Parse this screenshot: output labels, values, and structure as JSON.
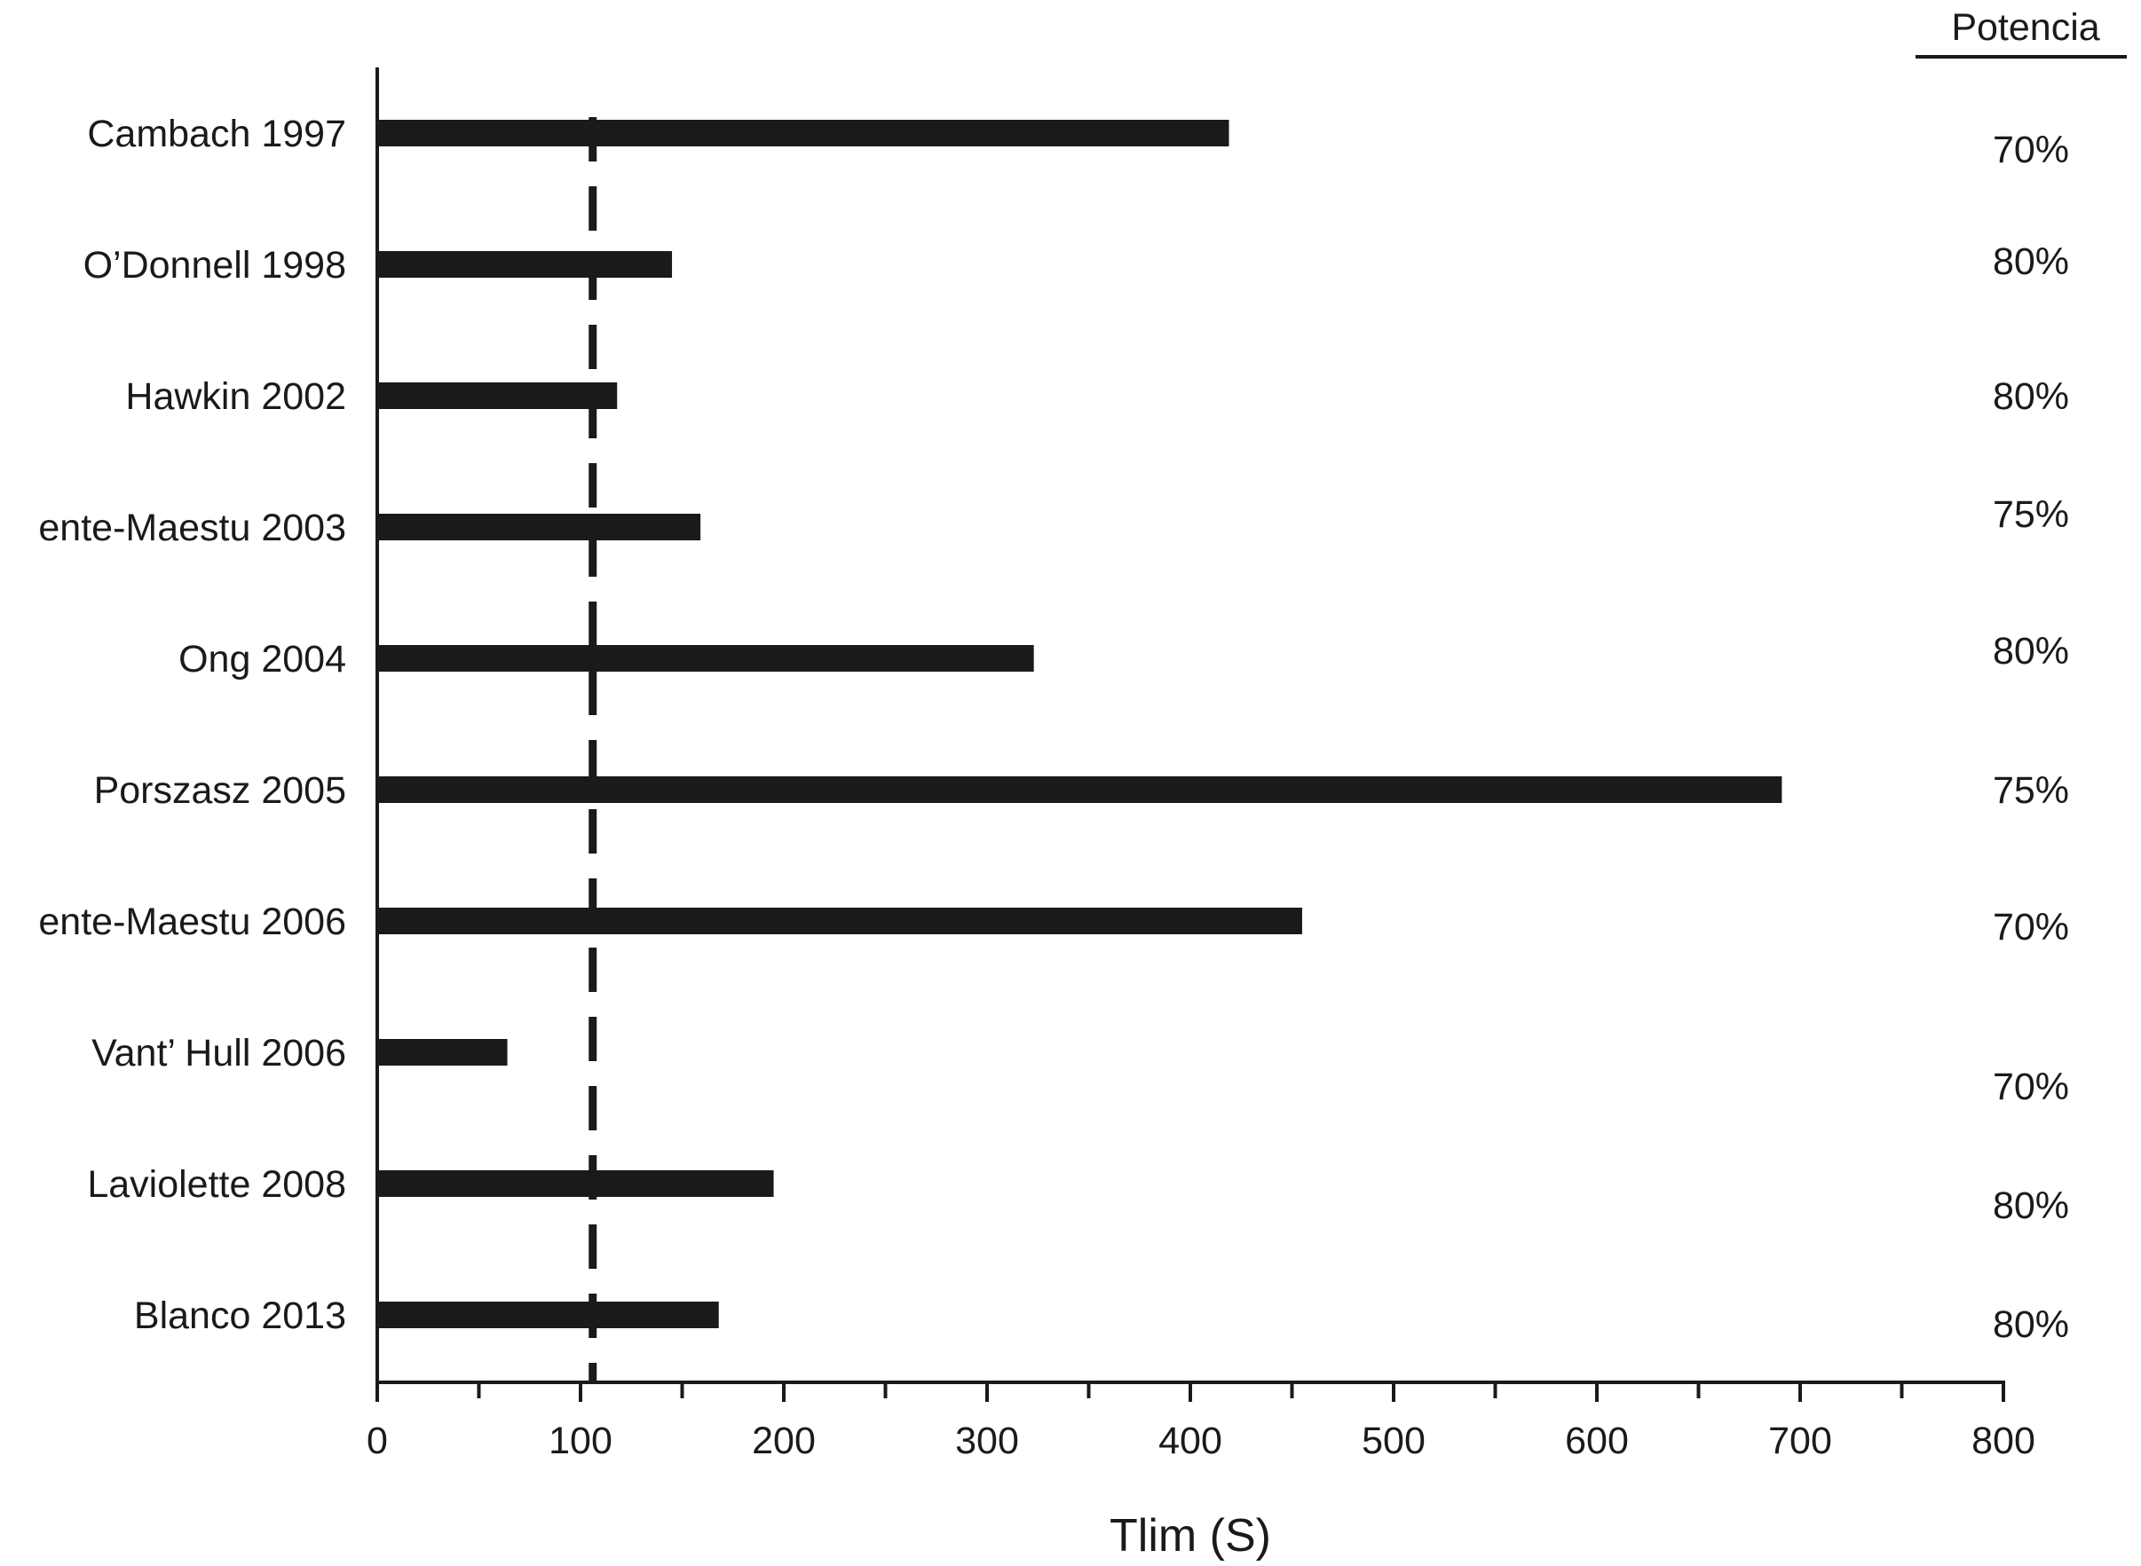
{
  "chart_data": {
    "type": "bar",
    "orientation": "horizontal",
    "title": "",
    "xlabel": "Tlim (S)",
    "ylabel": "",
    "xlim": [
      0,
      800
    ],
    "x_ticks": [
      0,
      100,
      200,
      300,
      400,
      500,
      600,
      700,
      800
    ],
    "reference_line": {
      "x": 106,
      "style": "dashed"
    },
    "grid": false,
    "categories": [
      "Cambach 1997",
      "O’Donnell 1998",
      "Hawkin 2002",
      "ente-Maestu 2003",
      "Ong 2004",
      "Porszasz 2005",
      "ente-Maestu 2006",
      "Vant’ Hull 2006",
      "Laviolette 2008",
      "Blanco 2013"
    ],
    "values": [
      419,
      145,
      118,
      159,
      323,
      691,
      455,
      64,
      195,
      168
    ],
    "extra_column": {
      "header": "Potencia",
      "values": [
        "70%",
        "80%",
        "80%",
        "75%",
        "80%",
        "75%",
        "70%",
        "70%",
        "80%",
        "80%"
      ]
    },
    "colors": {
      "bar": "#1a1a1a",
      "axis": "#1a1a1a",
      "background": "#ffffff"
    }
  }
}
